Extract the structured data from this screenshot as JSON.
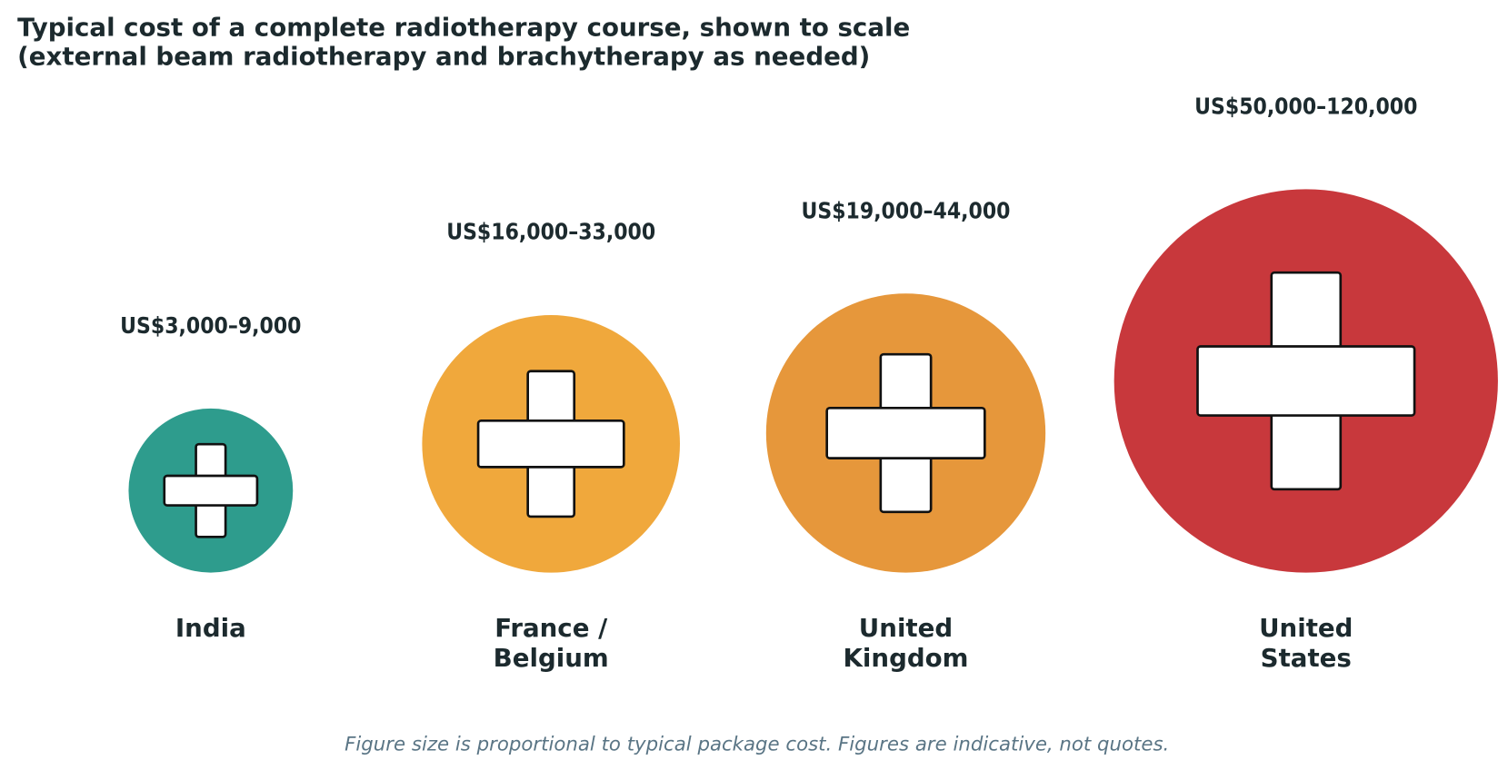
{
  "chart_data": {
    "type": "pictogram",
    "title": "Typical cost of a complete radiotherapy course, shown to scale\n(external beam radiotherapy and brachytherapy as needed)",
    "categories": [
      "India",
      "France /\nBelgium",
      "United\nKingdom",
      "United\nStates"
    ],
    "low": [
      3000,
      16000,
      19000,
      50000
    ],
    "high": [
      9000,
      33000,
      44000,
      120000
    ],
    "value_labels": [
      "US$3,000–9,000",
      "US$16,000–33,000",
      "US$19,000–44,000",
      "US$50,000–120,000"
    ],
    "colors": [
      "#2e9c8d",
      "#f0a83c",
      "#e6973b",
      "#c8383c"
    ],
    "caption": "Figure size is proportional to typical package cost. Figures are indicative, not quotes."
  }
}
